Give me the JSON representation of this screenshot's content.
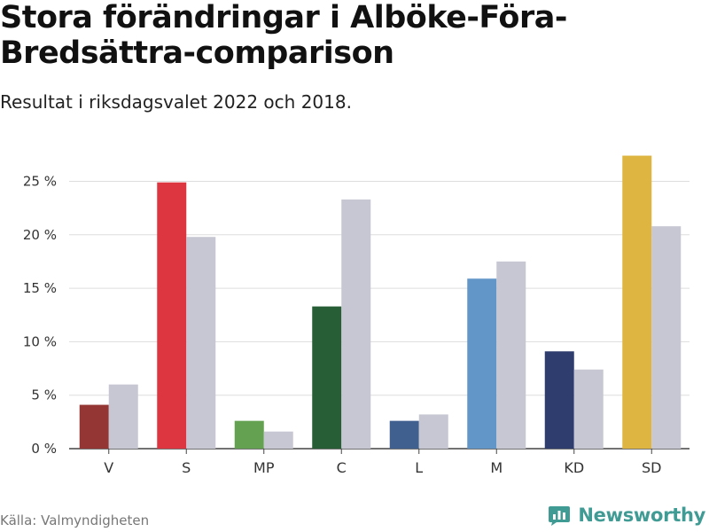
{
  "title": "Stora förändringar i Alböke-Föra-Bredsättra-comparison",
  "subtitle": "Resultat i riksdagsvalet 2022 och 2018.",
  "source": "Källa: Valmyndigheten",
  "brand": {
    "name": "Newsworthy",
    "icon": "bar-chart-logo-icon",
    "color": "#3f9b94"
  },
  "chart_data": {
    "type": "bar",
    "title": "Stora förändringar i Alböke-Föra-Bredsättra-comparison",
    "subtitle": "Resultat i riksdagsvalet 2022 och 2018.",
    "xlabel": "",
    "ylabel": "",
    "categories": [
      "V",
      "S",
      "MP",
      "C",
      "L",
      "M",
      "KD",
      "SD"
    ],
    "series": [
      {
        "values": [
          4.1,
          24.9,
          2.6,
          13.3,
          2.6,
          15.9,
          9.1,
          27.4
        ],
        "colors": [
          "#943634",
          "#dd3640",
          "#64a251",
          "#275e35",
          "#40608f",
          "#6295c8",
          "#2f3c6e",
          "#dfb542"
        ]
      },
      {
        "values": [
          6.0,
          19.8,
          1.6,
          23.3,
          3.2,
          17.5,
          7.4,
          20.8
        ],
        "color": "#c7c7d3"
      }
    ],
    "ylim": [
      0,
      28
    ],
    "yticks": [
      0,
      5,
      10,
      15,
      20,
      25
    ],
    "ytick_labels": [
      "0 %",
      "5 %",
      "10 %",
      "15 %",
      "20 %",
      "25 %"
    ],
    "grid": true,
    "legend": "none"
  }
}
